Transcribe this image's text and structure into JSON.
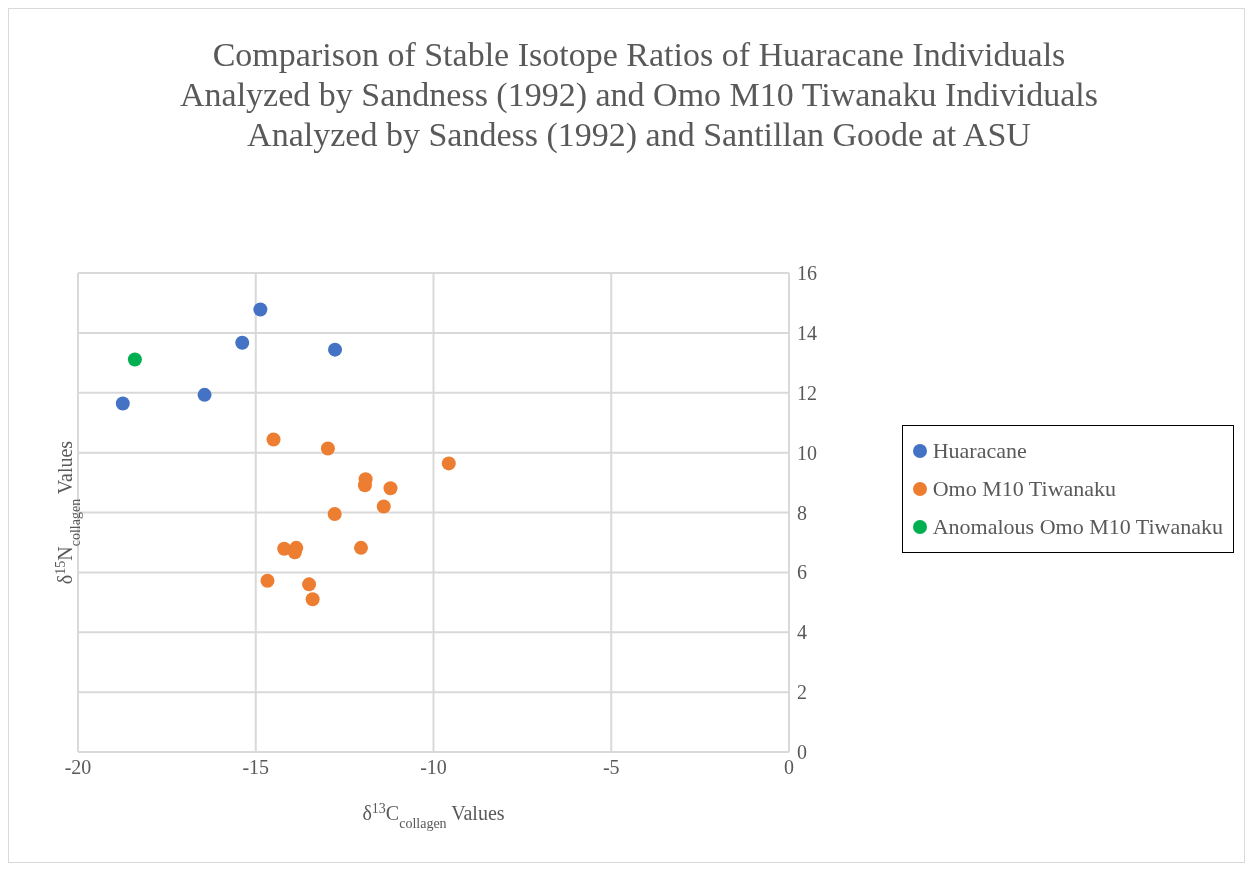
{
  "chart_data": {
    "type": "scatter",
    "title": "Comparison of Stable Isotope Ratios of Huaracane Individuals Analyzed by Sandness (1992) and Omo M10 Tiwanaku Individuals Analyzed by Sandess (1992) and Santillan Goode at ASU",
    "xlabel": "δ$^{13}$C$_{collagen}$ Values",
    "ylabel": "δ$^{15}$N$_{collagen}$ Values",
    "xlim": [
      -20,
      0
    ],
    "xticks": [
      -20,
      -15,
      -10,
      -5,
      0
    ],
    "ylim": [
      0,
      16
    ],
    "yticks": [
      0,
      2,
      4,
      6,
      8,
      10,
      12,
      14,
      16
    ],
    "grid": true,
    "legend": "right",
    "marker": "circle",
    "series": [
      {
        "name": "Huaracane",
        "color": "#4472c4",
        "x": [
          -18.74,
          -16.44,
          -15.38,
          -14.87,
          -12.77
        ],
        "values": [
          11.64,
          11.93,
          13.67,
          14.78,
          13.44
        ]
      },
      {
        "name": "Omo M10 Tiwanaku",
        "color": "#ed7d31",
        "x": [
          -14.5,
          -12.97,
          -9.57,
          -11.91,
          -11.93,
          -11.21,
          -11.4,
          -12.78,
          -14.2,
          -13.86,
          -13.9,
          -12.04,
          -14.67,
          -13.5,
          -13.4
        ],
        "values": [
          10.44,
          10.14,
          9.64,
          9.11,
          8.91,
          8.81,
          8.2,
          7.95,
          6.79,
          6.82,
          6.67,
          6.82,
          5.72,
          5.6,
          5.1
        ]
      },
      {
        "name": "Anomalous Omo M10 Tiwanaku",
        "color": "#00b050",
        "x": [
          -18.4
        ],
        "values": [
          13.11
        ]
      }
    ]
  }
}
